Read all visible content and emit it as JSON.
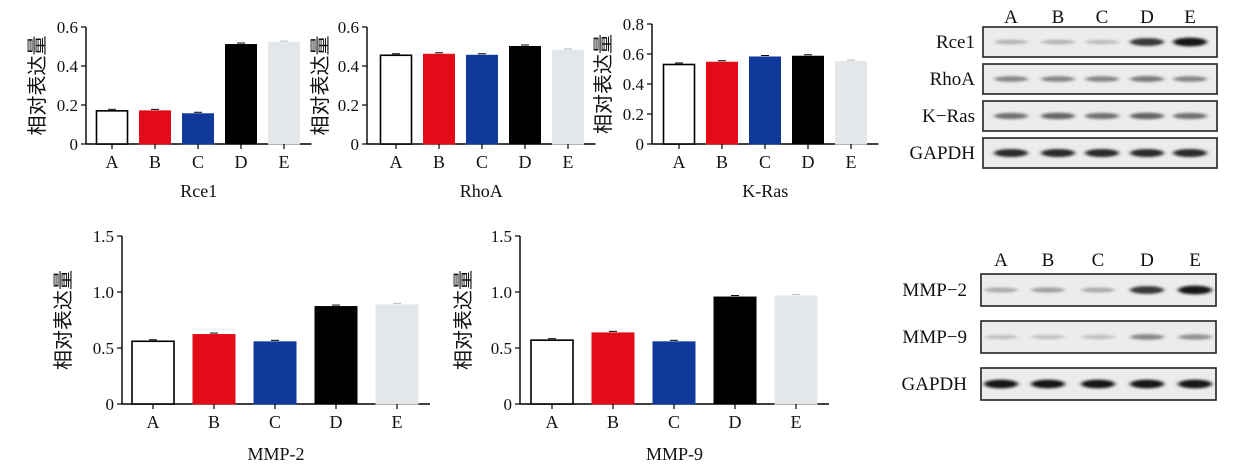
{
  "ylabel_text": "相对表达量",
  "colors": [
    "#ffffff",
    "#e30b18",
    "#0f3a9c",
    "#000000",
    "#e4e7ea"
  ],
  "chart_data": [
    {
      "type": "bar",
      "xlabel": "Rce1",
      "ylabel": "相对表达量",
      "categories": [
        "A",
        "B",
        "C",
        "D",
        "E"
      ],
      "values": [
        0.17,
        0.17,
        0.155,
        0.51,
        0.52
      ],
      "ylim": [
        0,
        0.6
      ],
      "yticks": [
        "0",
        "0.2",
        "0.4",
        "0.6"
      ],
      "ytick_values": [
        0,
        0.2,
        0.4,
        0.6
      ]
    },
    {
      "type": "bar",
      "xlabel": "RhoA",
      "ylabel": "相对表达量",
      "categories": [
        "A",
        "B",
        "C",
        "D",
        "E"
      ],
      "values": [
        0.455,
        0.46,
        0.455,
        0.5,
        0.48
      ],
      "ylim": [
        0,
        0.6
      ],
      "yticks": [
        "0",
        "0.2",
        "0.4",
        "0.6"
      ],
      "ytick_values": [
        0,
        0.2,
        0.4,
        0.6
      ]
    },
    {
      "type": "bar",
      "xlabel": "K-Ras",
      "ylabel": "相对表达量",
      "categories": [
        "A",
        "B",
        "C",
        "D",
        "E"
      ],
      "values": [
        0.53,
        0.545,
        0.58,
        0.585,
        0.55
      ],
      "ylim": [
        0,
        0.8
      ],
      "yticks": [
        "0",
        "0.2",
        "0.4",
        "0.6",
        "0.8"
      ],
      "ytick_values": [
        0,
        0.2,
        0.4,
        0.6,
        0.8
      ]
    },
    {
      "type": "bar",
      "xlabel": "MMP-2",
      "ylabel": "相对表达量",
      "categories": [
        "A",
        "B",
        "C",
        "D",
        "E"
      ],
      "values": [
        0.56,
        0.62,
        0.555,
        0.87,
        0.885
      ],
      "ylim": [
        0,
        1.5
      ],
      "yticks": [
        "0",
        "0.5",
        "1.0",
        "1.5"
      ],
      "ytick_values": [
        0,
        0.5,
        1.0,
        1.5
      ]
    },
    {
      "type": "bar",
      "xlabel": "MMP-9",
      "ylabel": "相对表达量",
      "categories": [
        "A",
        "B",
        "C",
        "D",
        "E"
      ],
      "values": [
        0.57,
        0.635,
        0.555,
        0.955,
        0.965
      ],
      "ylim": [
        0,
        1.5
      ],
      "yticks": [
        "0",
        "0.5",
        "1.0",
        "1.5"
      ],
      "ytick_values": [
        0,
        0.5,
        1.0,
        1.5
      ]
    }
  ],
  "blots": [
    {
      "lanes": [
        "A",
        "B",
        "C",
        "D",
        "E"
      ],
      "rows": [
        {
          "label": "Rce1",
          "intensity": [
            0.25,
            0.25,
            0.22,
            0.8,
            0.95
          ]
        },
        {
          "label": "RhoA",
          "intensity": [
            0.45,
            0.45,
            0.45,
            0.5,
            0.45
          ]
        },
        {
          "label": "K−Ras",
          "intensity": [
            0.55,
            0.6,
            0.55,
            0.6,
            0.55
          ]
        },
        {
          "label": "GAPDH",
          "intensity": [
            0.85,
            0.85,
            0.85,
            0.85,
            0.85
          ]
        }
      ]
    },
    {
      "lanes": [
        "A",
        "B",
        "C",
        "D",
        "E"
      ],
      "rows": [
        {
          "label": "MMP−2",
          "intensity": [
            0.3,
            0.35,
            0.3,
            0.8,
            0.95
          ]
        },
        {
          "label": "MMP−9",
          "intensity": [
            0.2,
            0.2,
            0.2,
            0.45,
            0.4
          ]
        },
        {
          "label": "GAPDH",
          "intensity": [
            0.95,
            0.95,
            0.95,
            0.95,
            0.95
          ]
        }
      ]
    }
  ]
}
